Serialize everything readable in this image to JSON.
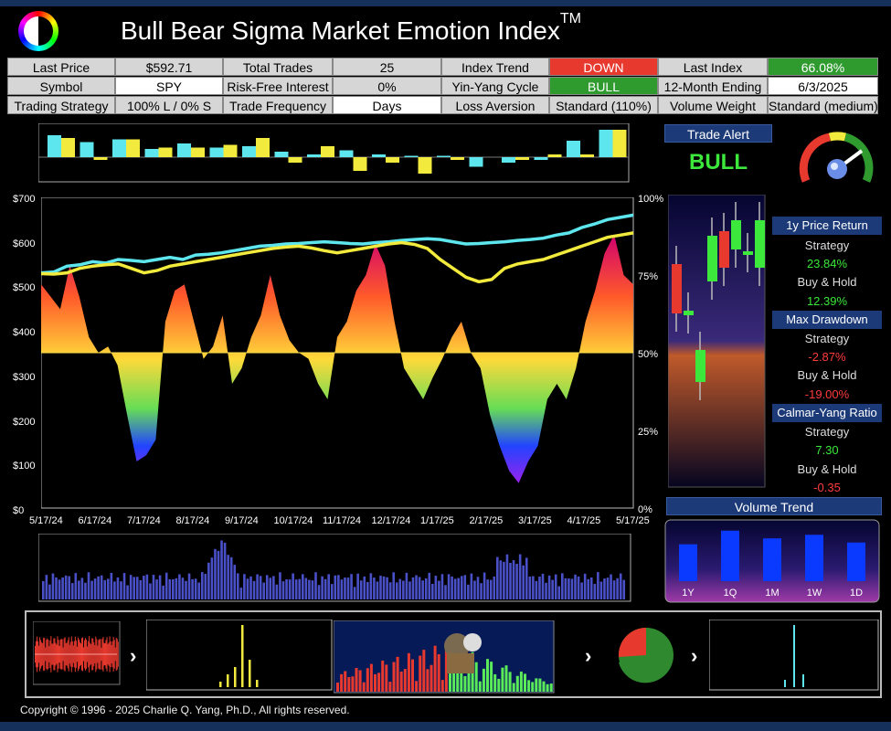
{
  "header": {
    "title": "Bull Bear Sigma Market Emotion Index",
    "tm": "TM"
  },
  "info_grid": [
    [
      {
        "label": "Last Price",
        "value": "$592.71",
        "style": "val"
      },
      {
        "label": "Total Trades",
        "value": "25",
        "style": "val"
      },
      {
        "label": "Index Trend",
        "value": "DOWN",
        "style": "red"
      },
      {
        "label": "Last Index",
        "value": "66.08%",
        "style": "grn"
      }
    ],
    [
      {
        "label": "Symbol",
        "value": "SPY",
        "style": "wht"
      },
      {
        "label": "Risk-Free Interest",
        "value": "0%",
        "style": "val"
      },
      {
        "label": "Yin-Yang Cycle",
        "value": "BULL",
        "style": "grn"
      },
      {
        "label": "12-Month Ending",
        "value": "6/3/2025",
        "style": "wht"
      }
    ],
    [
      {
        "label": "Trading Strategy",
        "value": "100% L / 0% S",
        "style": "val"
      },
      {
        "label": "Trade Frequency",
        "value": "Days",
        "style": "wht"
      },
      {
        "label": "Loss Aversion",
        "value": "Standard (110%)",
        "style": "val"
      },
      {
        "label": "Volume Weight",
        "value": "Standard (medium)",
        "style": "val"
      }
    ]
  ],
  "trade_alert": {
    "title": "Trade Alert",
    "signal": "BULL"
  },
  "stats": {
    "price_return_title": "1y Price Return",
    "strategy_label": "Strategy",
    "buyhold_label": "Buy & Hold",
    "price_return_strategy": "23.84%",
    "price_return_buyhold": "12.39%",
    "drawdown_title": "Max Drawdown",
    "drawdown_strategy": "-2.87%",
    "drawdown_buyhold": "-19.00%",
    "calmar_title": "Calmar-Yang Ratio",
    "calmar_strategy": "7.30",
    "calmar_buyhold": "-0.35"
  },
  "volume_trend": {
    "title": "Volume Trend",
    "labels": [
      "1Y",
      "1Q",
      "1M",
      "1W",
      "1D"
    ],
    "values": [
      0.62,
      0.85,
      0.72,
      0.78,
      0.65
    ]
  },
  "chart_data": {
    "type": "line",
    "y_left_ticks": [
      "$700",
      "$600",
      "$500",
      "$400",
      "$300",
      "$200",
      "$100",
      "$0"
    ],
    "y_right_ticks": [
      "100%",
      "75%",
      "50%",
      "25%",
      "0%"
    ],
    "x_ticks": [
      "5/17/24",
      "6/17/24",
      "7/17/24",
      "8/17/24",
      "9/17/24",
      "10/17/24",
      "11/17/24",
      "12/17/24",
      "1/17/25",
      "2/17/25",
      "3/17/25",
      "4/17/25",
      "5/17/25"
    ],
    "ylim_left": [
      0,
      700
    ],
    "ylim_right": [
      0,
      100
    ],
    "series": [
      {
        "color": "#5ee6ee",
        "values": [
          530,
          532,
          545,
          548,
          555,
          552,
          560,
          558,
          555,
          560,
          565,
          560,
          570,
          572,
          575,
          580,
          585,
          590,
          592,
          595,
          596,
          598,
          600,
          598,
          596,
          595,
          598,
          600,
          603,
          605,
          607,
          605,
          600,
          595,
          596,
          598,
          600,
          603,
          605,
          608,
          615,
          620,
          632,
          640,
          650,
          655,
          660
        ]
      },
      {
        "color": "#f2ea3c",
        "values": [
          528,
          527,
          530,
          540,
          545,
          548,
          550,
          540,
          530,
          535,
          545,
          550,
          555,
          560,
          565,
          570,
          575,
          580,
          585,
          588,
          590,
          586,
          580,
          575,
          580,
          585,
          590,
          595,
          598,
          594,
          585,
          560,
          540,
          520,
          510,
          515,
          540,
          550,
          555,
          560,
          570,
          580,
          590,
          600,
          610,
          615,
          620
        ]
      }
    ],
    "emotion_index": [
      72,
      68,
      64,
      78,
      68,
      55,
      50,
      52,
      46,
      30,
      15,
      17,
      22,
      60,
      70,
      72,
      60,
      48,
      52,
      62,
      40,
      45,
      55,
      62,
      75,
      62,
      54,
      50,
      48,
      40,
      35,
      55,
      60,
      70,
      75,
      85,
      78,
      60,
      45,
      40,
      35,
      42,
      48,
      55,
      60,
      50,
      45,
      30,
      20,
      12,
      8,
      15,
      20,
      35,
      40,
      35,
      45,
      60,
      70,
      82,
      88,
      75,
      72
    ],
    "top_bars": {
      "cyan": [
        0.8,
        0.55,
        0.65,
        0.3,
        0.5,
        0.35,
        0.4,
        0.2,
        0.1,
        0.25,
        0.1,
        0.05,
        0.05,
        -0.35,
        -0.2,
        -0.1,
        0.6,
        1.0
      ],
      "yellow": [
        0.7,
        -0.1,
        0.65,
        0.35,
        0.35,
        0.45,
        0.7,
        -0.2,
        0.4,
        -0.5,
        -0.2,
        -0.6,
        -0.1,
        0.0,
        -0.1,
        0.1,
        0.1,
        1.0
      ]
    }
  },
  "copyright": "Copyright © 1996 - 2025 Charlie Q. Yang, Ph.D., All rights reserved."
}
